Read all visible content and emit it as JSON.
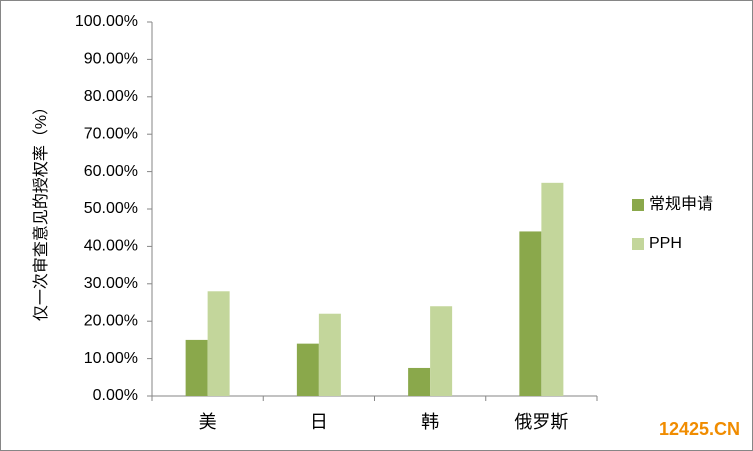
{
  "chart_data": {
    "type": "bar",
    "y_label": "仅一次审查意见的授权率（%）",
    "categories": [
      "美",
      "日",
      "韩",
      "俄罗斯"
    ],
    "series": [
      {
        "name": "常规申请",
        "color": "#8aa84b",
        "values": [
          15,
          14,
          7.5,
          44
        ]
      },
      {
        "name": "PPH",
        "color": "#c3d69b",
        "values": [
          28,
          22,
          24,
          57
        ]
      }
    ],
    "ylim": [
      0,
      100
    ],
    "yticks": [
      {
        "value": 0,
        "label": "0.00%"
      },
      {
        "value": 10,
        "label": "10.00%"
      },
      {
        "value": 20,
        "label": "20.00%"
      },
      {
        "value": 30,
        "label": "30.00%"
      },
      {
        "value": 40,
        "label": "40.00%"
      },
      {
        "value": 50,
        "label": "50.00%"
      },
      {
        "value": 60,
        "label": "60.00%"
      },
      {
        "value": 70,
        "label": "70.00%"
      },
      {
        "value": 80,
        "label": "80.00%"
      },
      {
        "value": 90,
        "label": "90.00%"
      },
      {
        "value": 100,
        "label": "100.00%"
      }
    ],
    "grid": false,
    "legend": "right",
    "watermark": "12425.CN"
  }
}
